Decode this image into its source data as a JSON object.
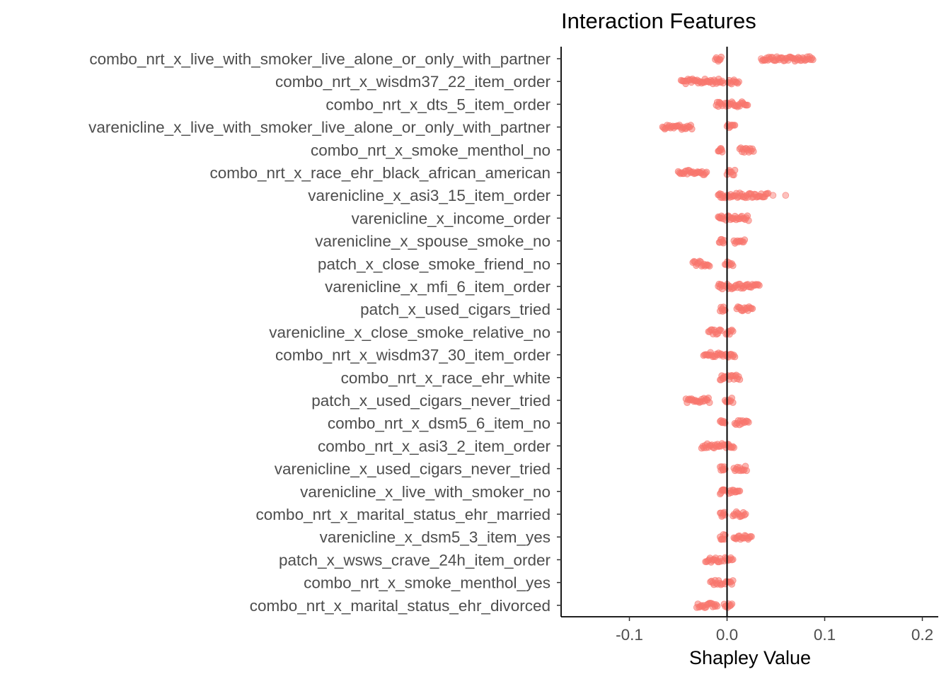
{
  "chart_data": {
    "type": "scatter",
    "subtype": "beeswarm (SHAP values per feature)",
    "title": "Interaction Features",
    "xlabel": "Shapley Value",
    "ylabel": "",
    "xlim": [
      -0.17,
      0.22
    ],
    "xticks": [
      -0.1,
      0.0,
      0.1,
      0.2
    ],
    "xtick_labels": [
      "-0.1",
      "0.0",
      "0.1",
      "0.2"
    ],
    "reference_line_x": 0,
    "point_color": "#F8766D",
    "grid": false,
    "legend": "none",
    "features": [
      {
        "name": "combo_nrt_x_live_with_smoker_live_alone_or_only_with_partner",
        "clusters": [
          [
            -0.012,
            -0.006
          ],
          [
            0.036,
            0.088
          ]
        ],
        "outliers": [
          0.035
        ]
      },
      {
        "name": "combo_nrt_x_wisdm37_22_item_order",
        "clusters": [
          [
            -0.047,
            -0.004
          ],
          [
            0.001,
            0.012
          ]
        ],
        "outliers": []
      },
      {
        "name": "combo_nrt_x_dts_5_item_order",
        "clusters": [
          [
            -0.011,
            -0.005
          ],
          [
            -0.002,
            0.021
          ]
        ],
        "outliers": []
      },
      {
        "name": "varenicline_x_live_with_smoker_live_alone_or_only_with_partner",
        "clusters": [
          [
            -0.066,
            -0.036
          ],
          [
            0.0,
            0.008
          ]
        ],
        "outliers": []
      },
      {
        "name": "combo_nrt_x_smoke_menthol_no",
        "clusters": [
          [
            -0.009,
            -0.005
          ],
          [
            0.013,
            0.027
          ]
        ],
        "outliers": []
      },
      {
        "name": "combo_nrt_x_race_ehr_black_african_american",
        "clusters": [
          [
            -0.05,
            -0.021
          ],
          [
            0.0,
            0.008
          ]
        ],
        "outliers": []
      },
      {
        "name": "varenicline_x_asi3_15_item_order",
        "clusters": [
          [
            -0.009,
            -0.004
          ],
          [
            -0.002,
            0.042
          ]
        ],
        "outliers": [
          0.047,
          0.06
        ]
      },
      {
        "name": "varenicline_x_income_order",
        "clusters": [
          [
            -0.009,
            -0.004
          ],
          [
            -0.001,
            0.022
          ]
        ],
        "outliers": []
      },
      {
        "name": "varenicline_x_spouse_smoke_no",
        "clusters": [
          [
            -0.008,
            -0.003
          ],
          [
            0.007,
            0.018
          ]
        ],
        "outliers": []
      },
      {
        "name": "patch_x_close_smoke_friend_no",
        "clusters": [
          [
            -0.035,
            -0.018
          ],
          [
            -0.002,
            0.006
          ]
        ],
        "outliers": []
      },
      {
        "name": "varenicline_x_mfi_6_item_order",
        "clusters": [
          [
            -0.009,
            -0.004
          ],
          [
            -0.001,
            0.033
          ]
        ],
        "outliers": []
      },
      {
        "name": "patch_x_used_cigars_tried",
        "clusters": [
          [
            -0.007,
            -0.002
          ],
          [
            0.01,
            0.026
          ]
        ],
        "outliers": []
      },
      {
        "name": "varenicline_x_close_smoke_relative_no",
        "clusters": [
          [
            -0.019,
            -0.006
          ],
          [
            -0.001,
            0.006
          ]
        ],
        "outliers": []
      },
      {
        "name": "combo_nrt_x_wisdm37_30_item_order",
        "clusters": [
          [
            -0.024,
            -0.004
          ],
          [
            -0.002,
            0.008
          ]
        ],
        "outliers": []
      },
      {
        "name": "combo_nrt_x_race_ehr_white",
        "clusters": [
          [
            -0.007,
            -0.002
          ],
          [
            0.001,
            0.013
          ]
        ],
        "outliers": []
      },
      {
        "name": "patch_x_used_cigars_never_tried",
        "clusters": [
          [
            -0.042,
            -0.018
          ],
          [
            -0.002,
            0.006
          ]
        ],
        "outliers": []
      },
      {
        "name": "combo_nrt_x_dsm5_6_item_no",
        "clusters": [
          [
            -0.007,
            -0.002
          ],
          [
            0.008,
            0.022
          ]
        ],
        "outliers": []
      },
      {
        "name": "combo_nrt_x_asi3_2_item_order",
        "clusters": [
          [
            -0.026,
            -0.004
          ],
          [
            -0.002,
            0.007
          ]
        ],
        "outliers": []
      },
      {
        "name": "varenicline_x_used_cigars_never_tried",
        "clusters": [
          [
            -0.007,
            -0.002
          ],
          [
            0.007,
            0.02
          ]
        ],
        "outliers": []
      },
      {
        "name": "varenicline_x_live_with_smoker_no",
        "clusters": [
          [
            -0.007,
            -0.002
          ],
          [
            0.002,
            0.013
          ]
        ],
        "outliers": []
      },
      {
        "name": "combo_nrt_x_marital_status_ehr_married",
        "clusters": [
          [
            -0.007,
            -0.002
          ],
          [
            0.006,
            0.019
          ]
        ],
        "outliers": []
      },
      {
        "name": "varenicline_x_dsm5_3_item_yes",
        "clusters": [
          [
            -0.007,
            -0.002
          ],
          [
            0.007,
            0.025
          ]
        ],
        "outliers": []
      },
      {
        "name": "patch_x_wsws_crave_24h_item_order",
        "clusters": [
          [
            -0.022,
            -0.006
          ],
          [
            -0.003,
            0.006
          ]
        ],
        "outliers": []
      },
      {
        "name": "combo_nrt_x_smoke_menthol_yes",
        "clusters": [
          [
            -0.017,
            -0.005
          ],
          [
            -0.002,
            0.006
          ]
        ],
        "outliers": []
      },
      {
        "name": "combo_nrt_x_marital_status_ehr_divorced",
        "clusters": [
          [
            -0.031,
            -0.01
          ],
          [
            -0.003,
            0.005
          ]
        ],
        "outliers": []
      }
    ]
  }
}
